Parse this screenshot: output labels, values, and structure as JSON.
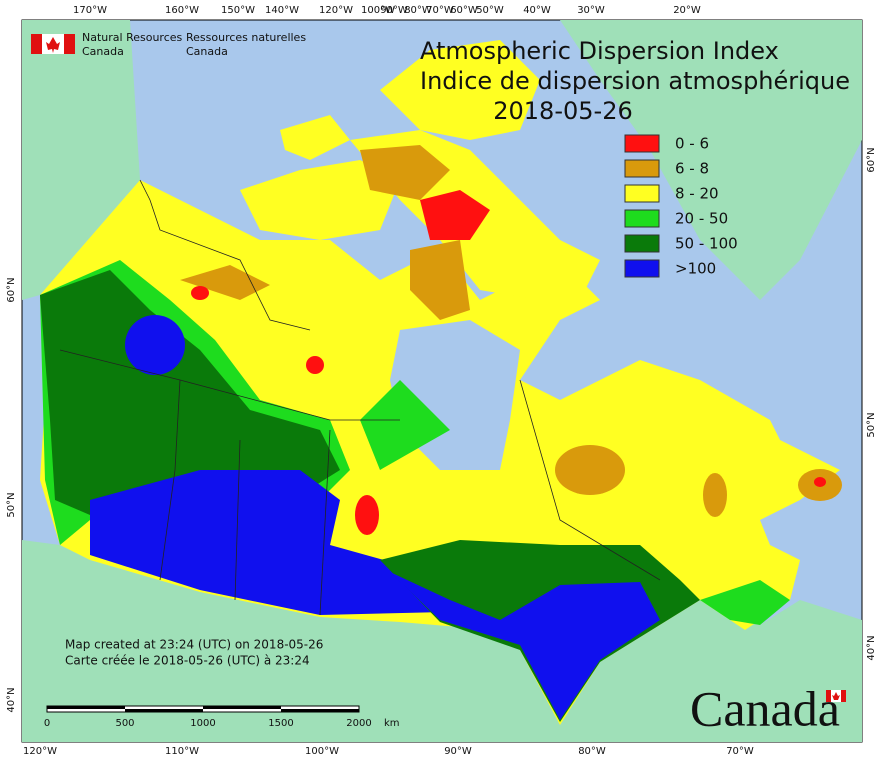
{
  "header": {
    "agency_en": [
      "Natural Resources",
      "Canada"
    ],
    "agency_fr": [
      "Ressources naturelles",
      "Canada"
    ]
  },
  "title": {
    "en": "Atmospheric Dispersion Index",
    "fr": "Indice de dispersion atmosphérique",
    "date": "2018-05-26"
  },
  "legend": [
    {
      "label": "0 - 6",
      "color": "#ff1010"
    },
    {
      "label": "6 - 8",
      "color": "#d99a0c"
    },
    {
      "label": "8 - 20",
      "color": "#ffff22"
    },
    {
      "label": "20 - 50",
      "color": "#1edc1e"
    },
    {
      "label": "50 - 100",
      "color": "#0a7a0a"
    },
    {
      "label": ">100",
      "color": "#1010ee"
    }
  ],
  "graticule": {
    "top": [
      "170°W",
      "160°W",
      "150°W",
      "140°W",
      "120°W",
      "100°W",
      "90°W",
      "80°W",
      "70°W",
      "60°W",
      "50°W",
      "40°W",
      "30°W",
      "20°W"
    ],
    "bottom": [
      "120°W",
      "110°W",
      "100°W",
      "90°W",
      "80°W",
      "70°W"
    ],
    "left": [
      "60°N",
      "50°N",
      "40°N"
    ],
    "right": [
      "60°N",
      "50°N",
      "40°N"
    ]
  },
  "credits": [
    "Map created at 23:24 (UTC) on 2018-05-26",
    "Carte créée le 2018-05-26 (UTC) à 23:24"
  ],
  "scale_bar": {
    "labels": [
      "0",
      "500",
      "1000",
      "1500",
      "2000"
    ],
    "unit": "km"
  },
  "wordmark": "Canada"
}
